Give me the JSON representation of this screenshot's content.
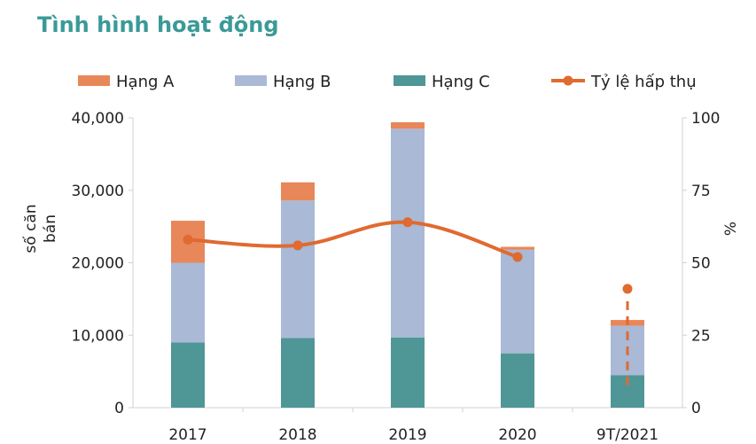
{
  "title": "Tình hình hoạt động",
  "colors": {
    "title": "#3a9a98",
    "hang_a": "#e8875a",
    "hang_b": "#a9b9d6",
    "hang_c": "#4f9696",
    "ty_le": "#e06a30"
  },
  "chart_data": {
    "type": "bar",
    "stacked": true,
    "categories": [
      "2017",
      "2018",
      "2019",
      "2020",
      "9T/2021"
    ],
    "series": [
      {
        "name": "Hạng A",
        "type": "bar",
        "axis": "left",
        "values": [
          5800,
          2500,
          900,
          400,
          800
        ]
      },
      {
        "name": "Hạng B",
        "type": "bar",
        "axis": "left",
        "values": [
          11000,
          19000,
          28800,
          14300,
          6800
        ]
      },
      {
        "name": "Hạng C",
        "type": "bar",
        "axis": "left",
        "values": [
          9000,
          9600,
          9700,
          7500,
          4500
        ]
      },
      {
        "name": "Tỷ lệ hấp thụ",
        "type": "line",
        "axis": "right",
        "values": [
          58,
          56,
          64,
          52,
          41
        ]
      }
    ],
    "ylabel": "số căn bán",
    "y2label": "%",
    "ylim": [
      0,
      40000
    ],
    "y2lim": [
      0,
      100
    ],
    "yticks": [
      "40,000",
      "30,000",
      "20,000",
      "10,000",
      "0"
    ],
    "y2ticks": [
      "100",
      "75",
      "50",
      "25",
      "0"
    ],
    "legend": "top",
    "grid": false
  }
}
